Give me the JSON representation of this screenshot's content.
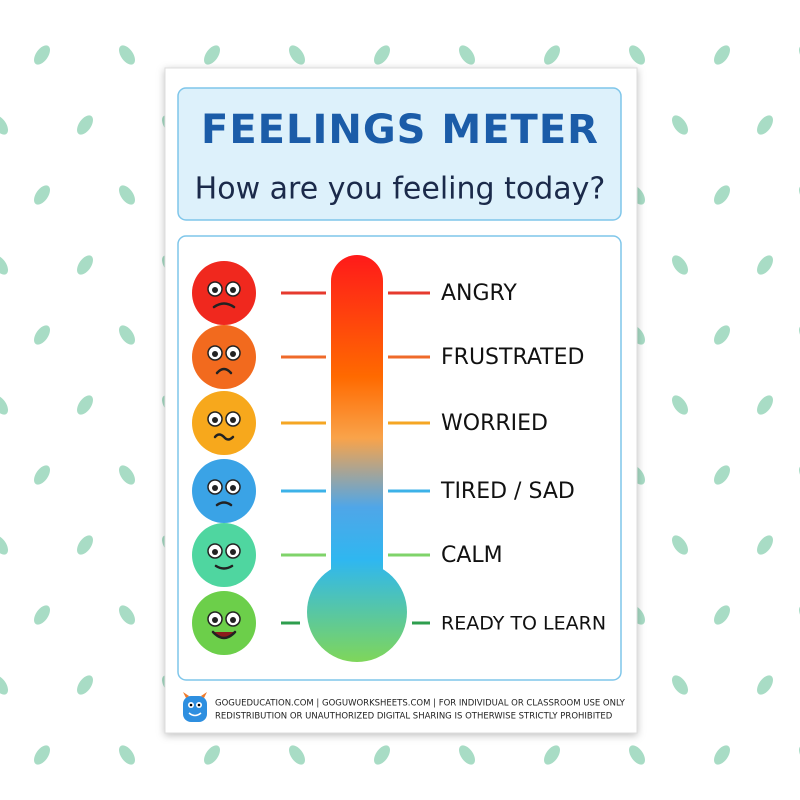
{
  "header": {
    "title": "FEELINGS METER",
    "subtitle": "How are you feeling today?"
  },
  "levels": [
    {
      "label": "ANGRY"
    },
    {
      "label": "FRUSTRATED"
    },
    {
      "label": "WORRIED"
    },
    {
      "label": "TIRED / SAD"
    },
    {
      "label": "CALM"
    },
    {
      "label": "READY TO LEARN"
    }
  ],
  "footer": {
    "line1": "GOGUEDUCATION.COM | GOGUWORKSHEETS.COM | FOR INDIVIDUAL OR CLASSROOM USE ONLY",
    "line2": "REDISTRIBUTION OR UNAUTHORIZED DIGITAL SHARING IS OTHERWISE STRICTLY PROHIBITED"
  }
}
